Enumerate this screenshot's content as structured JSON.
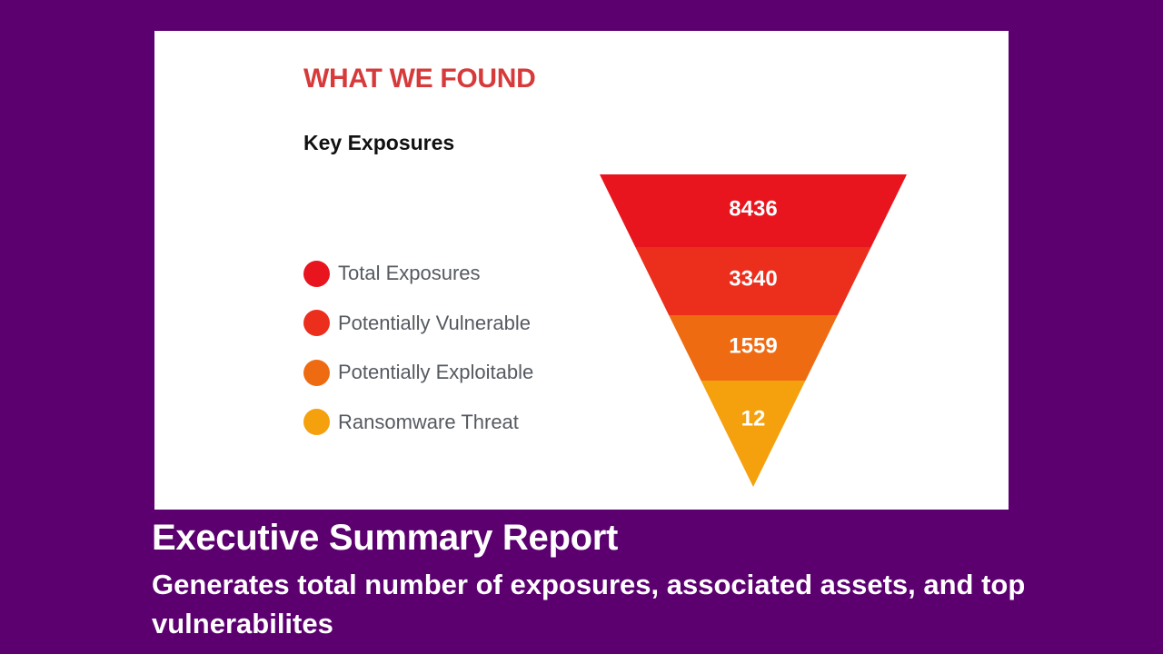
{
  "card": {
    "section_title": "WHAT WE FOUND"
  },
  "chart_data": {
    "type": "funnel",
    "title": "Key Exposures",
    "legend_position": "left",
    "stages": [
      {
        "name": "Total Exposures",
        "value": 8436,
        "label": "8436",
        "color": "#e8141e"
      },
      {
        "name": "Potentially Vulnerable",
        "value": 3340,
        "label": "3340",
        "color": "#ec2e1c"
      },
      {
        "name": "Potentially Exploitable",
        "value": 1559,
        "label": "1559",
        "color": "#ef6b12"
      },
      {
        "name": "Ransomware Threat",
        "value": 12,
        "label": "12",
        "color": "#f5a00d"
      }
    ]
  },
  "caption": {
    "title": "Executive Summary Report",
    "text": "Generates total number of exposures, associated assets, and top vulnerabilites"
  }
}
